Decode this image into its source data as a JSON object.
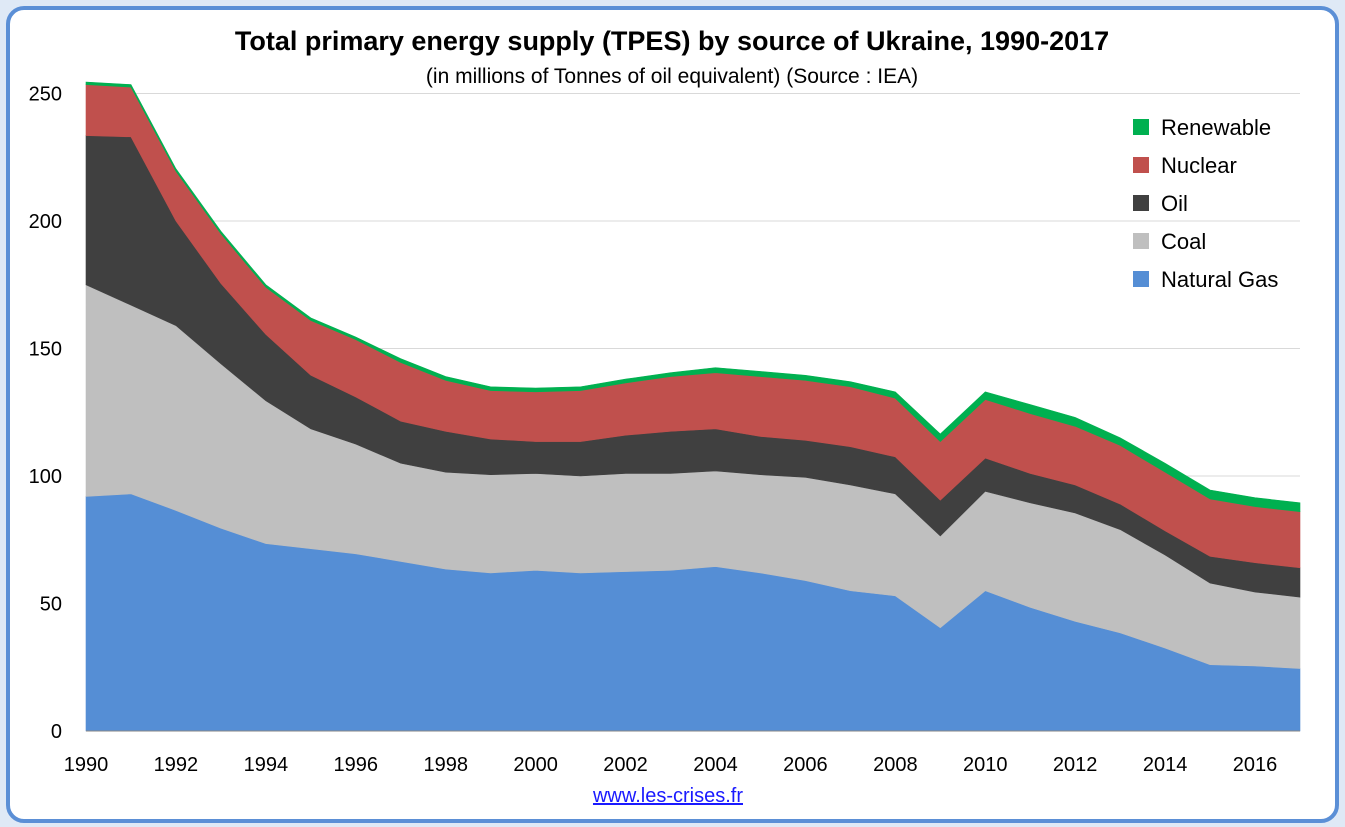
{
  "chart_data": {
    "type": "area",
    "stacked": true,
    "title": "Total primary energy supply (TPES) by source of Ukraine, 1990-2017",
    "subtitle": "(in millions of Tonnes of oil equivalent) (Source : IEA)",
    "x": [
      1990,
      1991,
      1992,
      1993,
      1994,
      1995,
      1996,
      1997,
      1998,
      1999,
      2000,
      2001,
      2002,
      2003,
      2004,
      2005,
      2006,
      2007,
      2008,
      2009,
      2010,
      2011,
      2012,
      2013,
      2014,
      2015,
      2016,
      2017
    ],
    "x_tick_labels": [
      "1990",
      "1992",
      "1994",
      "1996",
      "1998",
      "2000",
      "2002",
      "2004",
      "2006",
      "2008",
      "2010",
      "2012",
      "2014",
      "2016"
    ],
    "ylim": [
      0,
      260
    ],
    "y_ticks": [
      0,
      50,
      100,
      150,
      200,
      250
    ],
    "grid": "horizontal",
    "legend_position": "top-right",
    "series": [
      {
        "name": "Natural Gas",
        "color": "#558ed5",
        "values": [
          92,
          93,
          86.5,
          79.5,
          73.5,
          71.5,
          69.5,
          66.5,
          63.5,
          62,
          63,
          62,
          62.5,
          63,
          64.5,
          62,
          59,
          55,
          53,
          40.5,
          55,
          48.5,
          43,
          38.5,
          32.5,
          26,
          25.5,
          24.5
        ]
      },
      {
        "name": "Coal",
        "color": "#bfbfbf",
        "values": [
          83,
          74,
          72.5,
          64.5,
          56,
          47,
          43,
          38.5,
          38,
          38.5,
          38,
          38,
          38.5,
          38,
          37.5,
          38.5,
          40.5,
          41.5,
          40,
          36,
          39,
          41,
          42.5,
          40.5,
          36.5,
          32,
          29,
          28
        ]
      },
      {
        "name": "Oil",
        "color": "#404040",
        "values": [
          58.5,
          66,
          41,
          31.5,
          26,
          21,
          18.5,
          16.5,
          16,
          14,
          12.5,
          13.5,
          15,
          16.5,
          16.5,
          15,
          14.5,
          15,
          14.5,
          14,
          13,
          11.5,
          11,
          10,
          9.5,
          10.5,
          11.5,
          11.5
        ]
      },
      {
        "name": "Nuclear",
        "color": "#c0504d",
        "values": [
          20,
          19.5,
          19.5,
          19.5,
          18.5,
          21.5,
          22.5,
          23,
          20,
          19,
          19.5,
          20,
          20.5,
          21.5,
          22,
          23.5,
          23.5,
          23.5,
          23,
          23,
          23,
          23.5,
          23,
          23,
          23,
          22.5,
          22,
          22
        ]
      },
      {
        "name": "Renewable",
        "color": "#00b050",
        "values": [
          1,
          1,
          1,
          1,
          1,
          1,
          1,
          1.5,
          1.5,
          1.5,
          1.5,
          1.5,
          1.5,
          1.5,
          2,
          2,
          2,
          2,
          2.5,
          3,
          3,
          3.5,
          3.5,
          3,
          3.5,
          3.5,
          3.5,
          3.5
        ]
      }
    ]
  },
  "footer": {
    "link_text": "www.les-crises.fr"
  }
}
